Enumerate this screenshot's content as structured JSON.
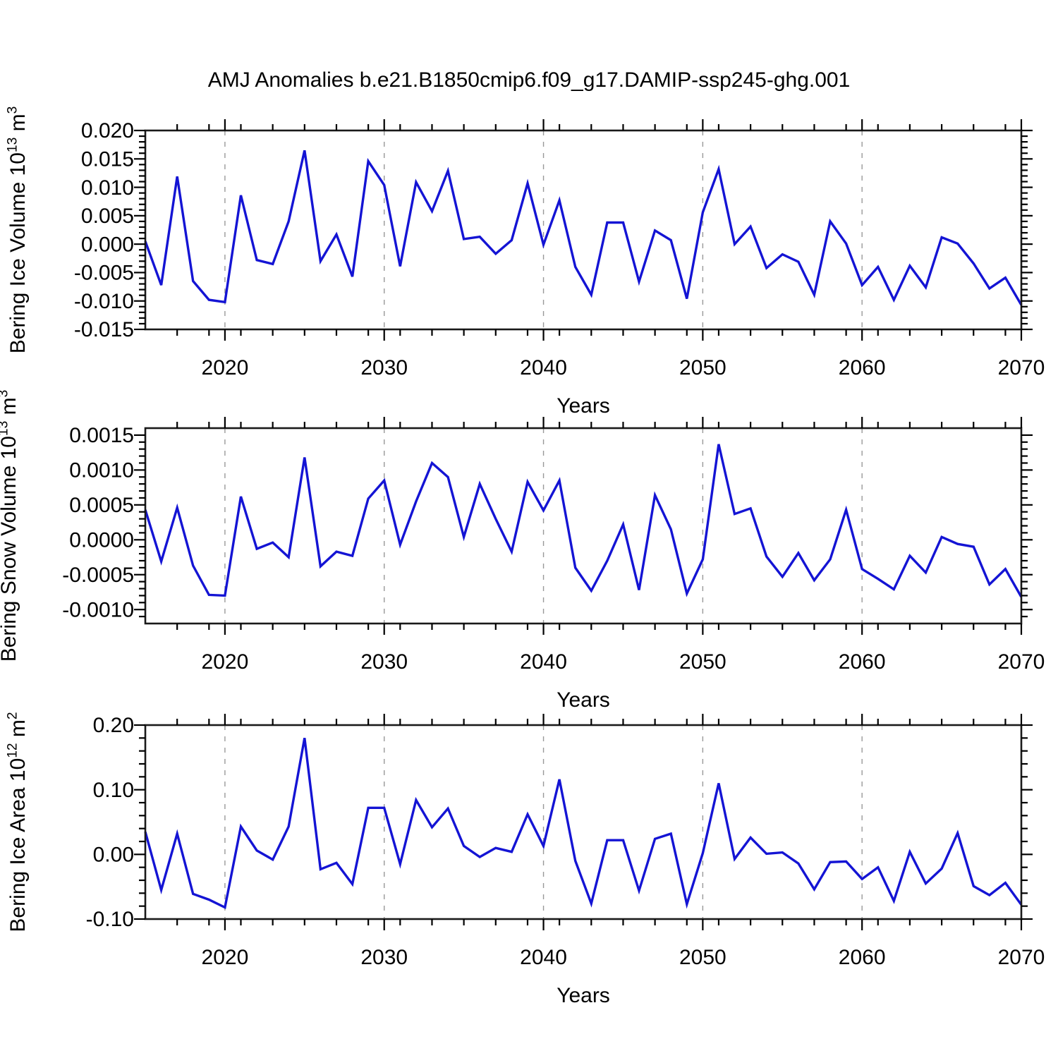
{
  "background": "#ffffff",
  "chart_data": {
    "type": "line",
    "title": "AMJ Anomalies b.e21.B1850cmip6.f09_g17.DAMIP-ssp245-ghg.001",
    "x_label": "Years",
    "line_color": "#1414d4",
    "grid_color": "#999999",
    "axis_color": "#1a1a1a",
    "legend": "none",
    "grid_years": [
      2020,
      2030,
      2040,
      2050,
      2060
    ],
    "x_major_ticks": [
      2020,
      2030,
      2040,
      2050,
      2060,
      2070
    ],
    "x_major_labels": [
      "2020",
      "2030",
      "2040",
      "2050",
      "2060",
      "2070"
    ],
    "x_minor_step": 2,
    "x_range": [
      2015,
      2070
    ],
    "years": [
      2015,
      2016,
      2017,
      2018,
      2019,
      2020,
      2021,
      2022,
      2023,
      2024,
      2025,
      2026,
      2027,
      2028,
      2029,
      2030,
      2031,
      2032,
      2033,
      2034,
      2035,
      2036,
      2037,
      2038,
      2039,
      2040,
      2041,
      2042,
      2043,
      2044,
      2045,
      2046,
      2047,
      2048,
      2049,
      2050,
      2051,
      2052,
      2053,
      2054,
      2055,
      2056,
      2057,
      2058,
      2059,
      2060,
      2061,
      2062,
      2063,
      2064,
      2065,
      2066,
      2067,
      2068,
      2069,
      2070
    ],
    "panels": [
      {
        "name": "bering-ice-volume",
        "y_label": "Bering Ice Volume 10^13 m^3",
        "y_range": [
          -0.015,
          0.02
        ],
        "y_tick_values": [
          0.02,
          0.015,
          0.01,
          0.005,
          0.0,
          -0.005,
          -0.01,
          -0.015
        ],
        "y_tick_labels": [
          "0.020",
          "0.015",
          "0.010",
          "0.005",
          "0.000",
          "-0.005",
          "-0.010",
          "-0.015"
        ],
        "y_minor_step": 0.001,
        "values": [
          0.0005,
          -0.0072,
          0.0119,
          -0.0065,
          -0.0098,
          -0.0102,
          0.0086,
          -0.0028,
          -0.0035,
          0.004,
          0.0165,
          -0.003,
          0.0017,
          -0.0057,
          0.0146,
          0.0104,
          -0.0039,
          0.0109,
          0.0058,
          0.0129,
          0.0009,
          0.0013,
          -0.0017,
          0.0007,
          0.0107,
          -0.0001,
          0.0077,
          -0.004,
          -0.0089,
          0.0038,
          0.0038,
          -0.0066,
          0.0024,
          0.0007,
          -0.0096,
          0.0056,
          0.0132,
          0.0,
          0.0031,
          -0.0042,
          -0.0018,
          -0.0031,
          -0.0089,
          0.004,
          0.0001,
          -0.0072,
          -0.004,
          -0.0098,
          -0.0038,
          -0.0076,
          0.0012,
          0.0001,
          -0.0034,
          -0.0078,
          -0.0059,
          -0.0107
        ]
      },
      {
        "name": "bering-snow-volume",
        "y_label": "Bering Snow Volume 10^13 m^3",
        "y_range": [
          -0.0012,
          0.0016
        ],
        "y_tick_values": [
          0.0015,
          0.001,
          0.0005,
          0.0,
          -0.0005,
          -0.001
        ],
        "y_tick_labels": [
          "0.0015",
          "0.0010",
          "0.0005",
          "0.0000",
          "-0.0005",
          "-0.0010"
        ],
        "y_minor_step": 0.0001,
        "values": [
          0.00043,
          -0.00031,
          0.00046,
          -0.00037,
          -0.00079,
          -0.0008,
          0.00062,
          -0.00013,
          -4e-05,
          -0.00025,
          0.00118,
          -0.00038,
          -0.00017,
          -0.00023,
          0.00059,
          0.00085,
          -7e-05,
          0.00055,
          0.0011,
          0.0009,
          4e-05,
          0.0008,
          0.0003,
          -0.00017,
          0.00083,
          0.00042,
          0.00085,
          -0.0004,
          -0.00073,
          -0.0003,
          0.00022,
          -0.00072,
          0.00064,
          0.00015,
          -0.00077,
          -0.00028,
          0.00137,
          0.00037,
          0.00045,
          -0.00024,
          -0.00053,
          -0.00019,
          -0.00058,
          -0.00028,
          0.00043,
          -0.00042,
          -0.00056,
          -0.00071,
          -0.00023,
          -0.00047,
          4e-05,
          -6e-05,
          -0.0001,
          -0.00064,
          -0.00042,
          -0.00082
        ]
      },
      {
        "name": "bering-ice-area",
        "y_label": "Bering Ice Area 10^12 m^2",
        "y_range": [
          -0.1,
          0.2
        ],
        "y_tick_values": [
          0.2,
          0.1,
          0.0,
          -0.1
        ],
        "y_tick_labels": [
          "0.20",
          "0.10",
          "0.00",
          "-0.10"
        ],
        "y_minor_step": 0.02,
        "values": [
          0.035,
          -0.055,
          0.032,
          -0.061,
          -0.07,
          -0.082,
          0.043,
          0.006,
          -0.008,
          0.043,
          0.18,
          -0.023,
          -0.013,
          -0.046,
          0.072,
          0.072,
          -0.015,
          0.084,
          0.042,
          0.071,
          0.013,
          -0.004,
          0.01,
          0.004,
          0.062,
          0.013,
          0.116,
          -0.01,
          -0.076,
          0.022,
          0.022,
          -0.056,
          0.024,
          0.032,
          -0.077,
          0.002,
          0.11,
          -0.007,
          0.026,
          0.001,
          0.003,
          -0.014,
          -0.054,
          -0.012,
          -0.011,
          -0.038,
          -0.02,
          -0.072,
          0.004,
          -0.045,
          -0.022,
          0.033,
          -0.049,
          -0.063,
          -0.044,
          -0.078
        ]
      }
    ]
  }
}
